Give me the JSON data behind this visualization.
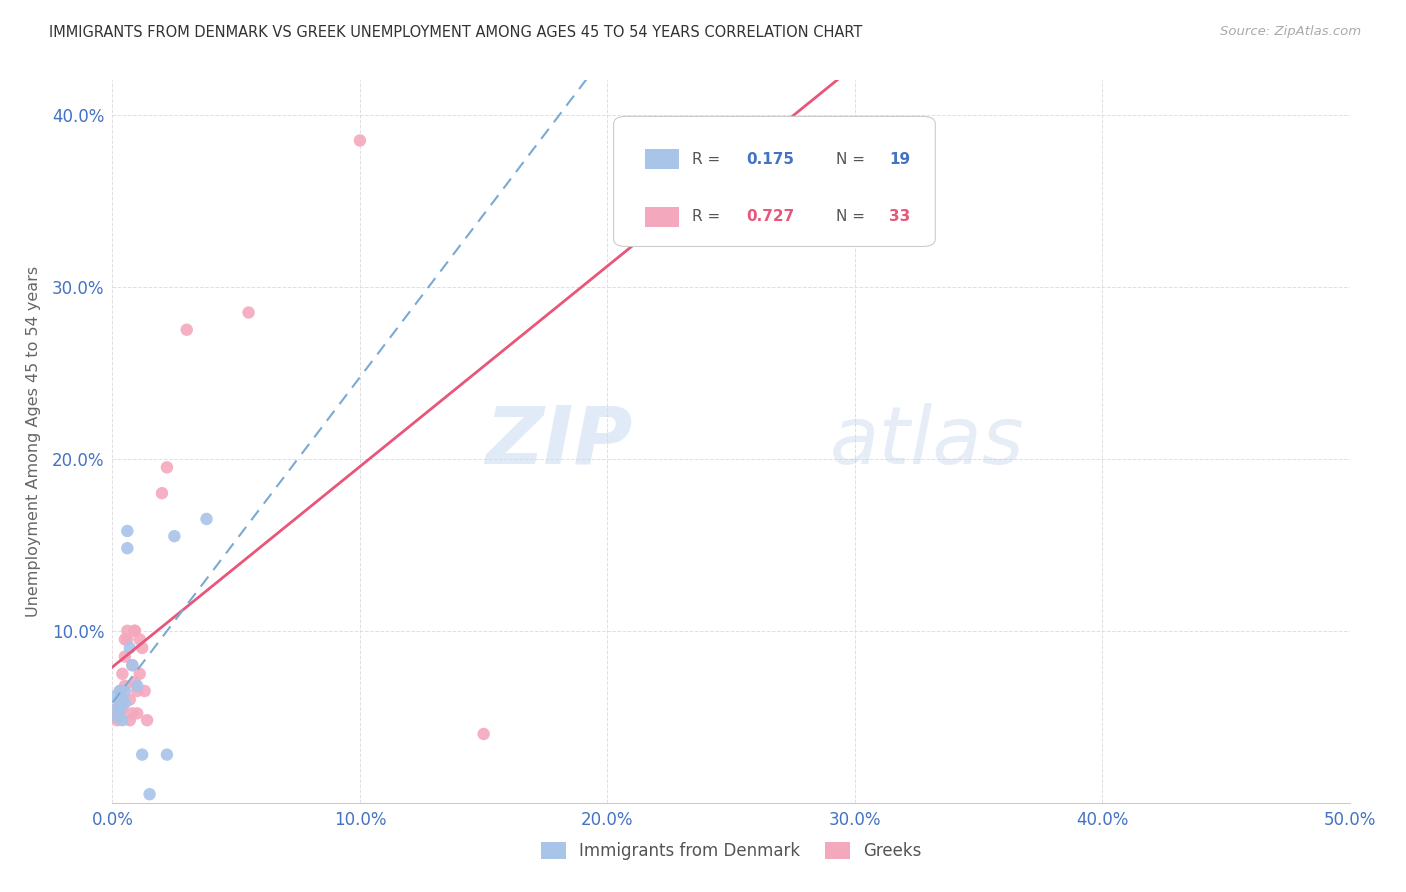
{
  "title": "IMMIGRANTS FROM DENMARK VS GREEK UNEMPLOYMENT AMONG AGES 45 TO 54 YEARS CORRELATION CHART",
  "source": "Source: ZipAtlas.com",
  "ylabel": "Unemployment Among Ages 45 to 54 years",
  "watermark_zip": "ZIP",
  "watermark_atlas": "atlas",
  "xlim": [
    0.0,
    0.5
  ],
  "ylim": [
    0.0,
    0.42
  ],
  "xticks": [
    0.0,
    0.1,
    0.2,
    0.3,
    0.4,
    0.5
  ],
  "yticks": [
    0.0,
    0.1,
    0.2,
    0.3,
    0.4
  ],
  "xtick_labels": [
    "0.0%",
    "10.0%",
    "20.0%",
    "30.0%",
    "40.0%",
    "50.0%"
  ],
  "ytick_labels": [
    "",
    "10.0%",
    "20.0%",
    "30.0%",
    "40.0%"
  ],
  "legend_label1": "Immigrants from Denmark",
  "legend_label2": "Greeks",
  "color_denmark": "#a8c4e8",
  "color_greece": "#f4a8be",
  "trendline_color_denmark": "#7aaad4",
  "trendline_color_greece": "#e8567a",
  "denmark_x": [
    0.001,
    0.002,
    0.002,
    0.003,
    0.003,
    0.004,
    0.004,
    0.005,
    0.005,
    0.006,
    0.006,
    0.007,
    0.008,
    0.01,
    0.012,
    0.015,
    0.022,
    0.025,
    0.038
  ],
  "denmark_y": [
    0.062,
    0.055,
    0.05,
    0.065,
    0.055,
    0.048,
    0.06,
    0.058,
    0.065,
    0.148,
    0.158,
    0.09,
    0.08,
    0.068,
    0.028,
    0.005,
    0.028,
    0.155,
    0.165
  ],
  "greece_x": [
    0.001,
    0.002,
    0.002,
    0.003,
    0.003,
    0.003,
    0.004,
    0.004,
    0.005,
    0.005,
    0.005,
    0.006,
    0.006,
    0.007,
    0.007,
    0.008,
    0.008,
    0.009,
    0.009,
    0.009,
    0.01,
    0.01,
    0.011,
    0.011,
    0.012,
    0.013,
    0.014,
    0.02,
    0.022,
    0.03,
    0.055,
    0.1,
    0.15
  ],
  "greece_y": [
    0.05,
    0.048,
    0.055,
    0.052,
    0.06,
    0.065,
    0.055,
    0.075,
    0.068,
    0.085,
    0.095,
    0.095,
    0.1,
    0.048,
    0.06,
    0.052,
    0.08,
    0.1,
    0.1,
    0.07,
    0.052,
    0.065,
    0.075,
    0.095,
    0.09,
    0.065,
    0.048,
    0.18,
    0.195,
    0.275,
    0.285,
    0.385,
    0.04
  ],
  "background_color": "#ffffff",
  "grid_color": "#d8d8d8",
  "title_color": "#333333",
  "axis_tick_color": "#4472c4",
  "marker_size": 80
}
